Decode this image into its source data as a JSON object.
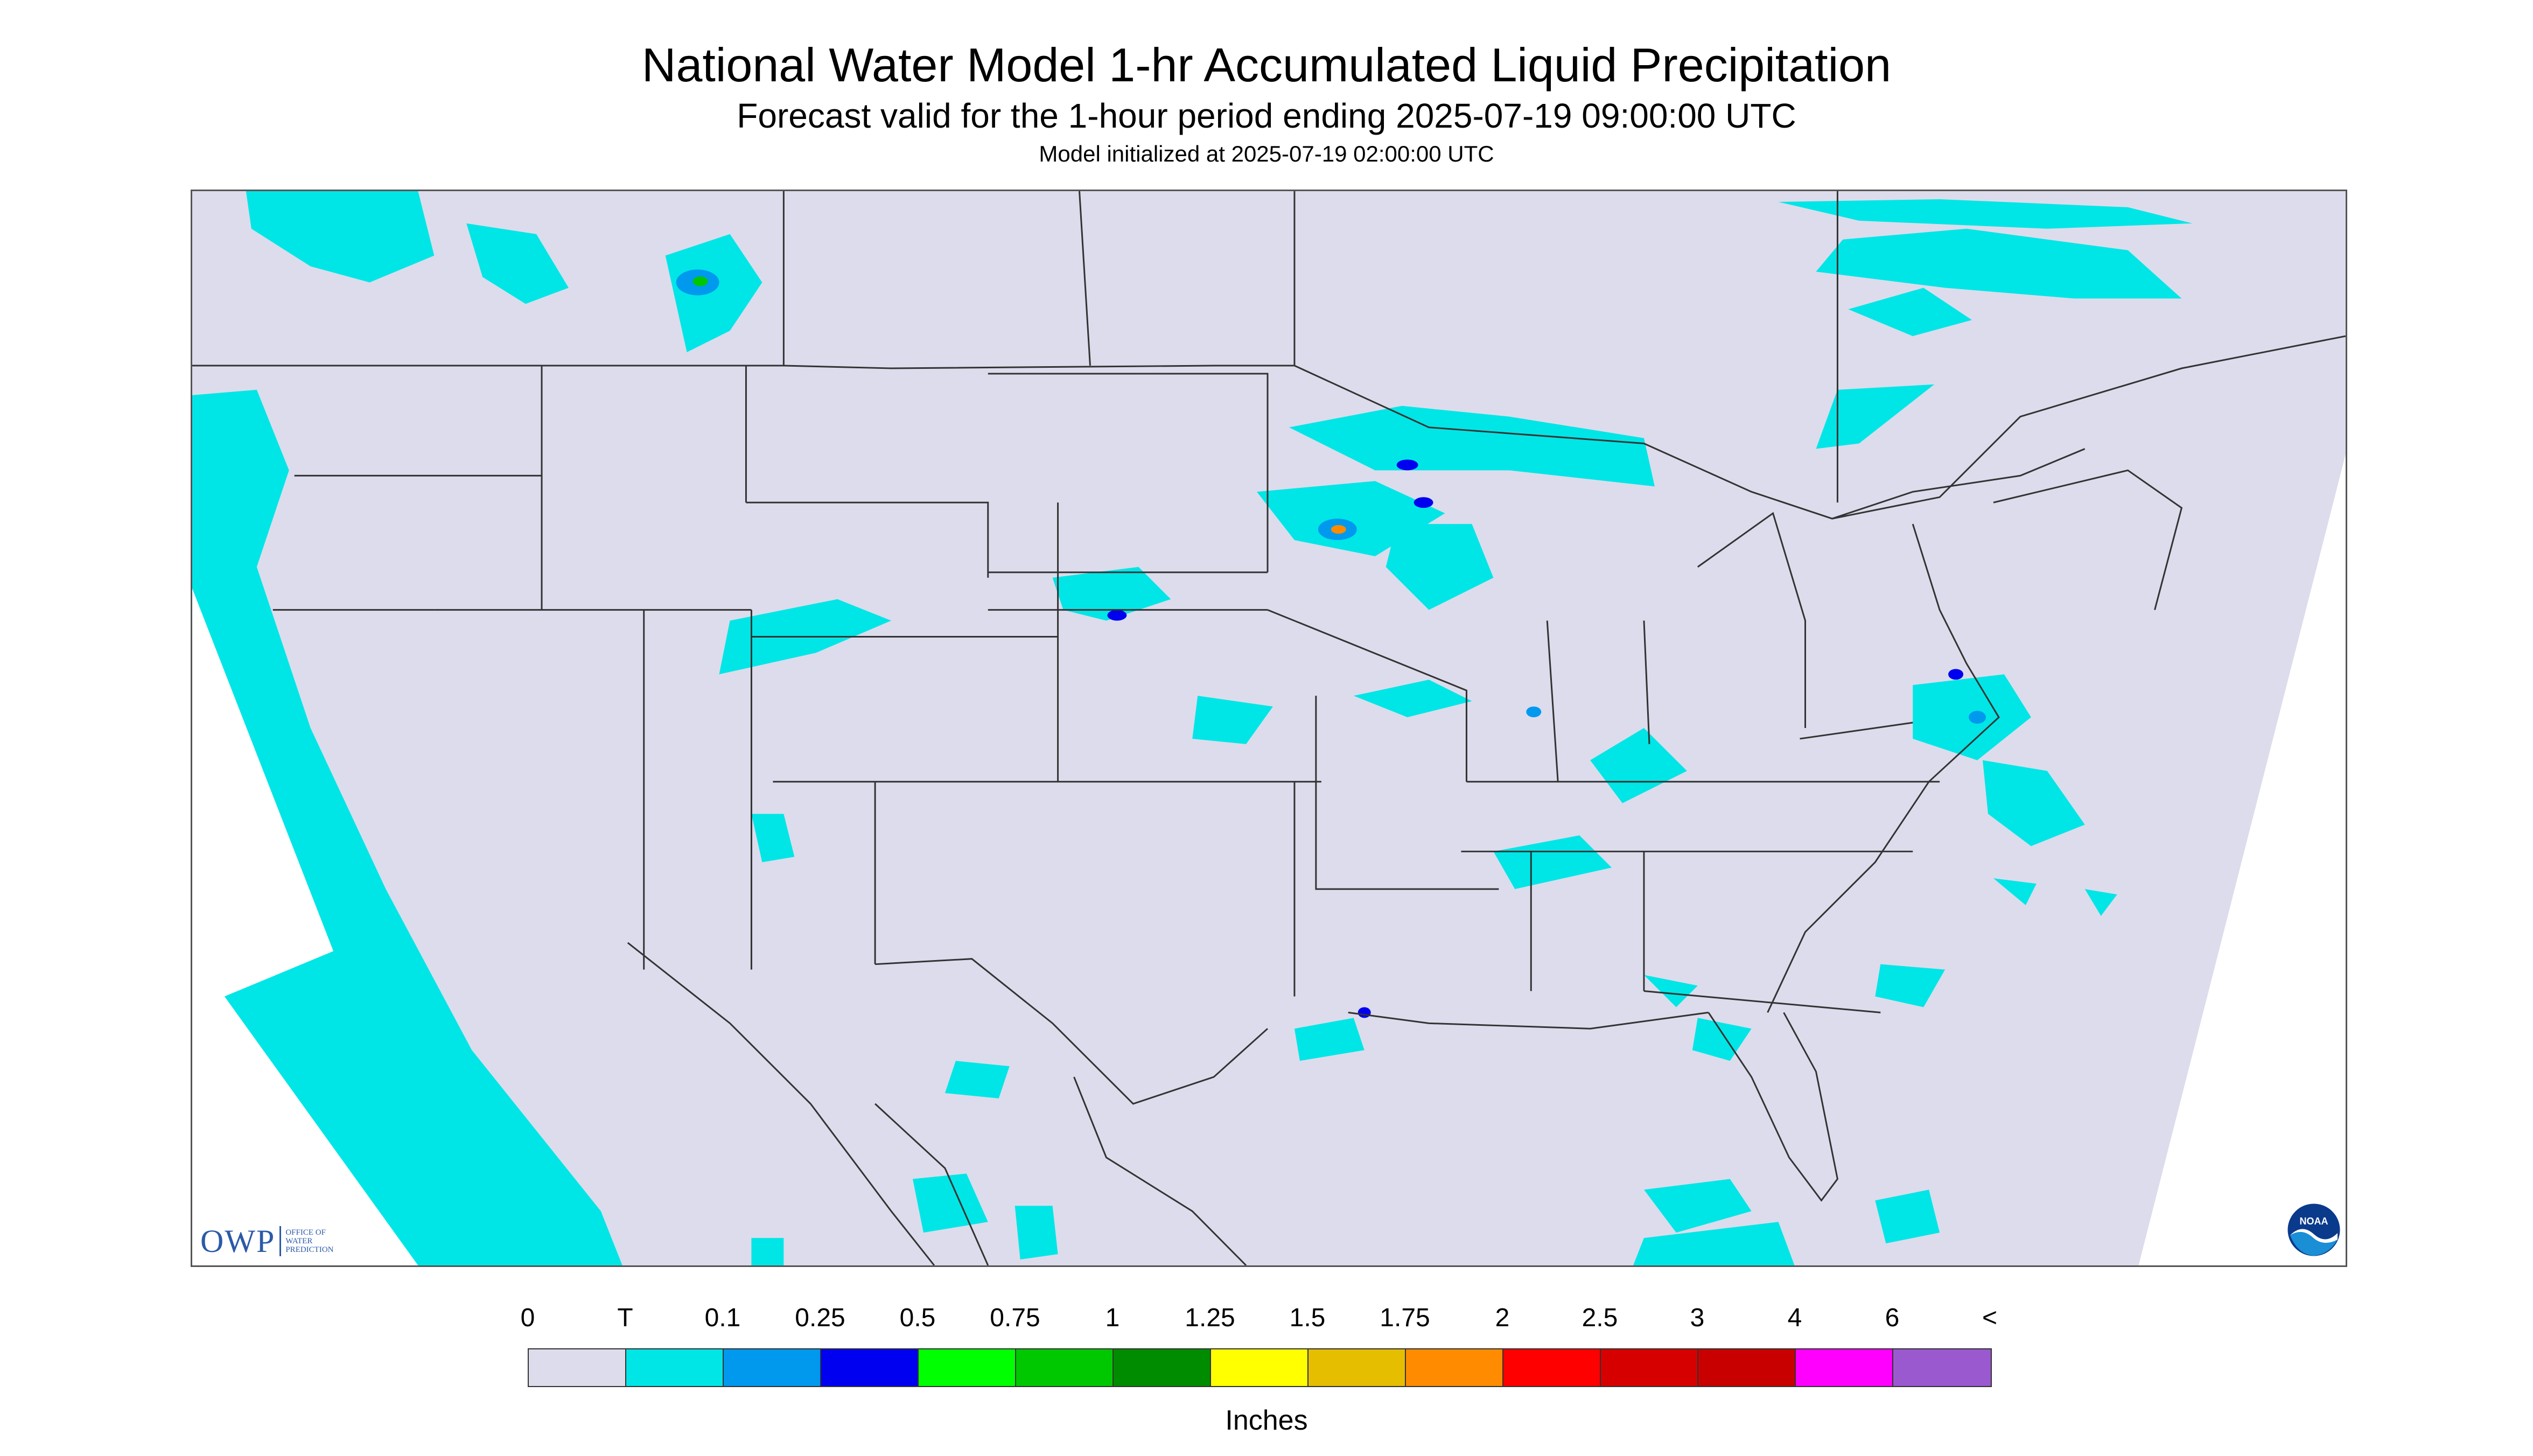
{
  "title": "National Water Model 1-hr Accumulated Liquid Precipitation",
  "subtitle": "Forecast valid for the 1-hour period ending 2025-07-19 09:00:00 UTC",
  "init_line": "Model initialized at 2025-07-19 02:00:00 UTC",
  "logos": {
    "owp_letters": "OWP",
    "owp_name_lines": [
      "OFFICE OF",
      "WATER",
      "PREDICTION"
    ],
    "noaa_text": "NOAA"
  },
  "legend": {
    "unit": "Inches",
    "labels": [
      "0",
      "T",
      "0.1",
      "0.25",
      "0.5",
      "0.75",
      "1",
      "1.25",
      "1.5",
      "1.75",
      "2",
      "2.5",
      "3",
      "4",
      "6",
      "<"
    ],
    "colors": [
      "#dcdcec",
      "#00e6e6",
      "#0099ee",
      "#0000f0",
      "#00ff00",
      "#00c800",
      "#008c00",
      "#ffff00",
      "#e6be00",
      "#ff8c00",
      "#ff0000",
      "#d70000",
      "#c80000",
      "#ff00ff",
      "#9b59d0"
    ]
  },
  "map": {
    "background": "#dcdcec",
    "no_data_color": "#ffffff",
    "boundary_color": "#333333"
  }
}
